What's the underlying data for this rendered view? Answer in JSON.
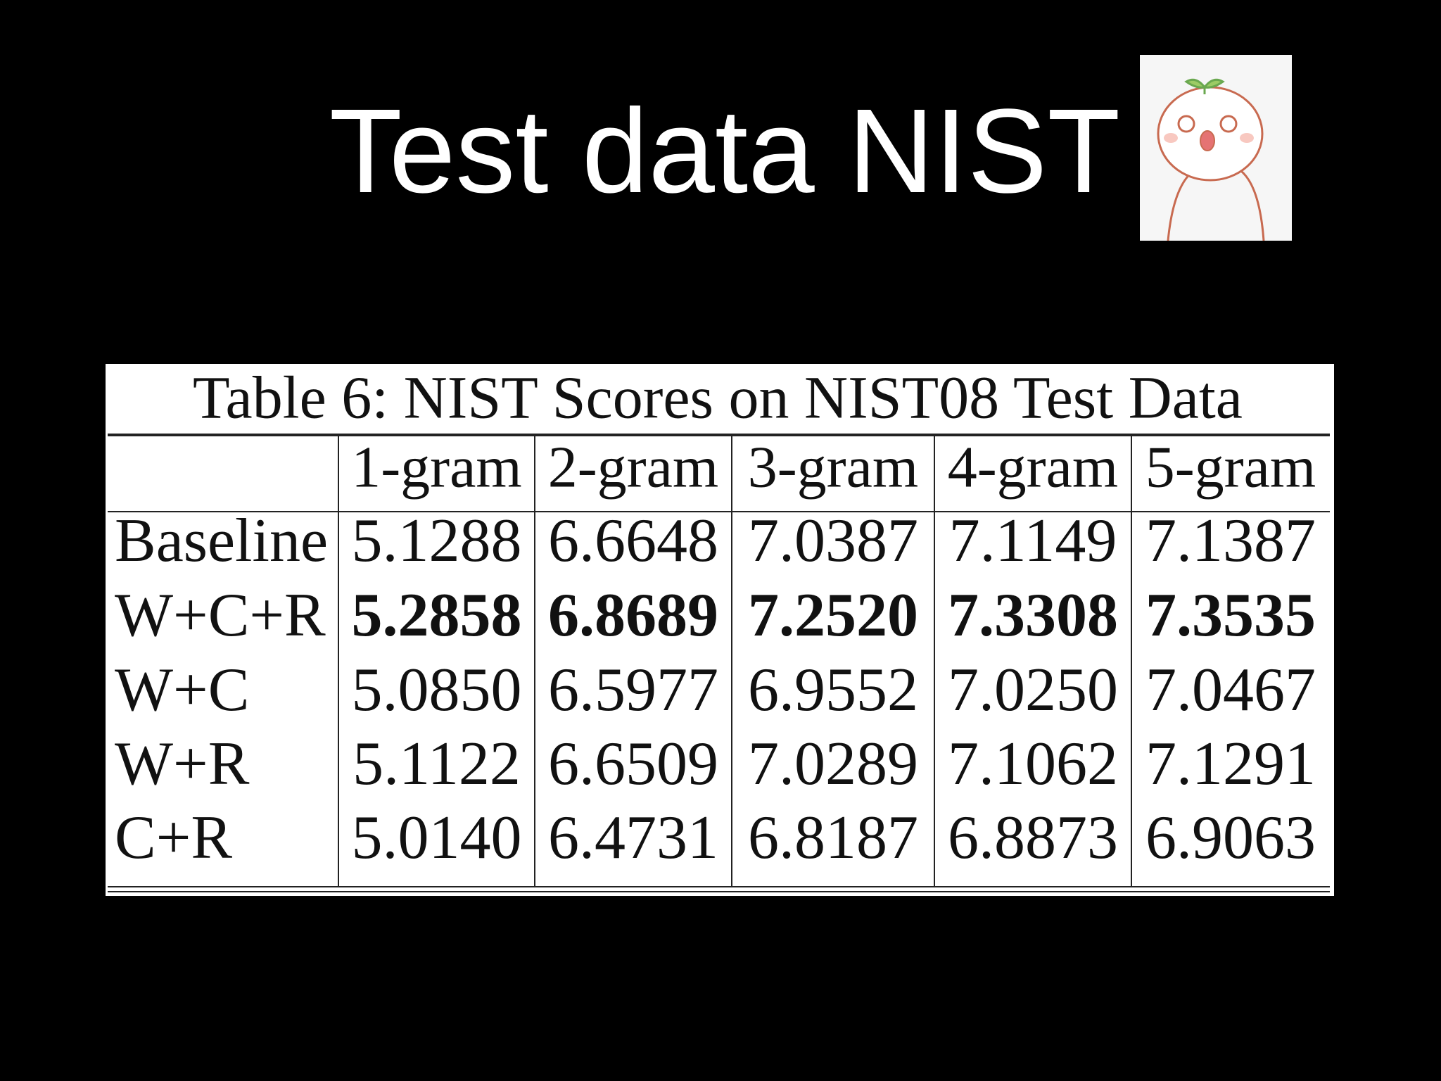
{
  "header": {
    "title": "Test data NIST"
  },
  "table": {
    "caption": "Table 6: NIST Scores on NIST08 Test Data",
    "columns": [
      "1-gram",
      "2-gram",
      "3-gram",
      "4-gram",
      "5-gram"
    ],
    "rows": [
      {
        "label": "Baseline",
        "cells": [
          "5.1288",
          "6.6648",
          "7.0387",
          "7.1149",
          "7.1387"
        ]
      },
      {
        "label": "W+C+R",
        "bold": true,
        "cells": [
          "5.2858",
          "6.8689",
          "7.2520",
          "7.3308",
          "7.3535"
        ]
      },
      {
        "label": "W+C",
        "cells": [
          "5.0850",
          "6.5977",
          "6.9552",
          "7.0250",
          "7.0467"
        ]
      },
      {
        "label": "W+R",
        "cells": [
          "5.1122",
          "6.6509",
          "7.0289",
          "7.1062",
          "7.1291"
        ]
      },
      {
        "label": "C+R",
        "cells": [
          "5.0140",
          "6.4731",
          "6.8187",
          "6.8873",
          "6.9063"
        ]
      }
    ]
  }
}
